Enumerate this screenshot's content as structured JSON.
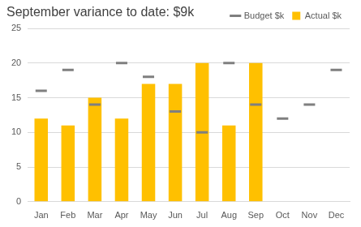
{
  "chart_data": {
    "type": "bar",
    "title": "September variance to date: $9k",
    "categories": [
      "Jan",
      "Feb",
      "Mar",
      "Apr",
      "May",
      "Jun",
      "Jul",
      "Aug",
      "Sep",
      "Oct",
      "Nov",
      "Dec"
    ],
    "series": [
      {
        "name": "Actual $k",
        "type": "bar",
        "color": "#ffc000",
        "values": [
          12,
          11,
          15,
          12,
          17,
          17,
          20,
          11,
          20,
          null,
          null,
          null
        ]
      },
      {
        "name": "Budget $k",
        "type": "line",
        "line_style": "none",
        "marker": "dash",
        "color": "#7f7f7f",
        "values": [
          16,
          19,
          14,
          20,
          18,
          13,
          10,
          20,
          14,
          12,
          14,
          19
        ]
      }
    ],
    "ylim": [
      0,
      25
    ],
    "yticks": [
      0,
      5,
      10,
      15,
      20,
      25
    ],
    "grid": true,
    "legend": "top-right"
  }
}
